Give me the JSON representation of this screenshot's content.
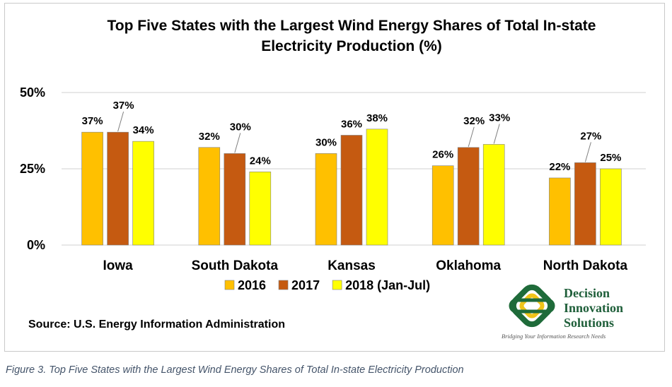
{
  "chart_data": {
    "type": "bar",
    "title_lines": [
      "Top Five States with the Largest Wind Energy Shares of Total In-state",
      "Electricity Production  (%)"
    ],
    "categories": [
      "Iowa",
      "South Dakota",
      "Kansas",
      "Oklahoma",
      "North Dakota"
    ],
    "series": [
      {
        "name": "2016",
        "color": "#ffc000",
        "values": [
          37,
          32,
          30,
          26,
          22
        ],
        "labels": [
          "37%",
          "32%",
          "30%",
          "26%",
          "22%"
        ]
      },
      {
        "name": "2017",
        "color": "#c55a11",
        "values": [
          37,
          30,
          36,
          32,
          27
        ],
        "labels": [
          "37%",
          "30%",
          "36%",
          "32%",
          "27%"
        ]
      },
      {
        "name": "2018 (Jan-Jul)",
        "color": "#ffff00",
        "values": [
          34,
          24,
          38,
          33,
          25
        ],
        "labels": [
          "34%",
          "24%",
          "38%",
          "33%",
          "25%"
        ]
      }
    ],
    "y_ticks": [
      0,
      25,
      50
    ],
    "y_tick_labels": [
      "0%",
      "25%",
      "50%"
    ],
    "ylim": [
      0,
      50
    ],
    "grid": true,
    "legend_position": "bottom"
  },
  "source": "Source:  U.S. Energy Information Administration",
  "logo": {
    "line1": "Decision",
    "line2": "Innovation",
    "line3": "Solutions",
    "tagline": "Bridging Your Information Research Needs",
    "color_dark": "#1f6b3a",
    "color_light": "#f0c419"
  },
  "caption": "Figure 3. Top Five States with the Largest Wind Energy Shares of Total In-state Electricity Production"
}
